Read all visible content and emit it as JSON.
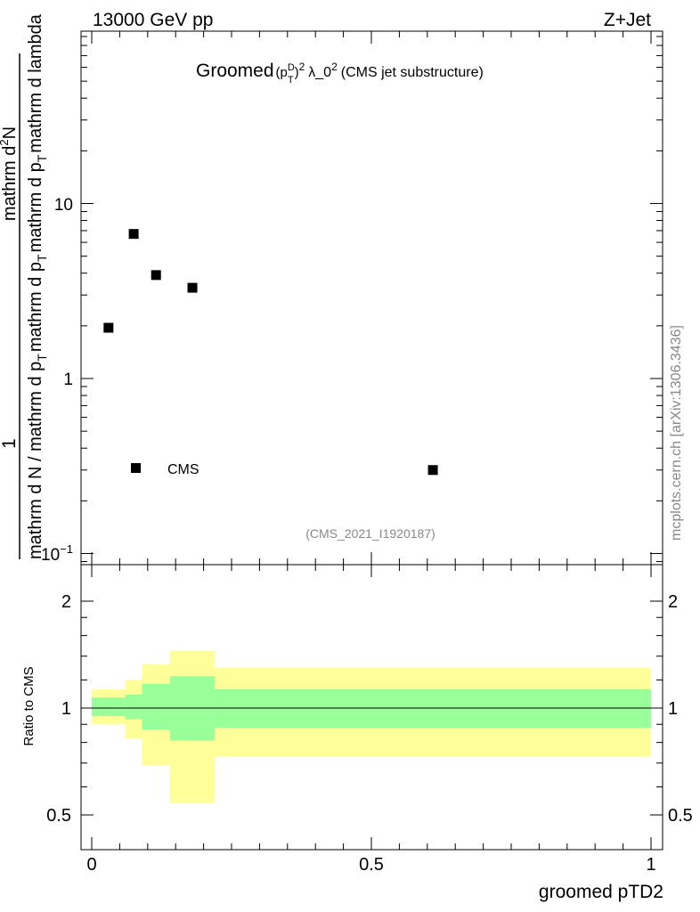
{
  "header": {
    "left": "13000 GeV pp",
    "right": "Z+Jet"
  },
  "plot": {
    "title_main": "Groomed",
    "title_rest": "λ_0",
    "title_tail": "(CMS jet substructure)",
    "title_p": "p",
    "title_D": "D",
    "title_T": "T",
    "title_sup2": "2",
    "title_sup2b": "2",
    "analysis_tag": "(CMS_2021_I1920187)",
    "side_label": "mcplots.cern.ch [arXiv:1306.3436]",
    "ylabel_num": "1",
    "ylabel_den": "mathrm d N / mathrm d p",
    "ylabel_den_sub": "T",
    "ylabel_right_num": "mathrm d",
    "ylabel_right_num_sup": "2",
    "ylabel_right_num_n": "N",
    "ylabel_right_den": "mathrm d p",
    "ylabel_right_den_sub": "T",
    "ylabel_right_den_rest": "mathrm d lambda",
    "ylabel_mid": "mathrm d p",
    "ylabel_mid_sub": "T",
    "ylabel_mid_rest": "mathrm d p",
    "ylabel_mid_sub2": "T"
  },
  "chart_data": [
    {
      "type": "scatter",
      "panel": "main",
      "title": "Groomed (p_T^D)^2 λ_0^2 (CMS jet substructure)",
      "yscale": "log",
      "ylim": [
        0.08,
        100
      ],
      "xlim": [
        -0.02,
        1.02
      ],
      "ytick_labels": [
        "10",
        "1",
        "10^-1"
      ],
      "legend": {
        "label": "CMS",
        "position": "lower-left"
      },
      "series": [
        {
          "name": "CMS",
          "x": [
            0.03,
            0.075,
            0.115,
            0.18,
            0.61
          ],
          "y": [
            1.95,
            6.7,
            3.9,
            3.3,
            0.3
          ]
        }
      ]
    },
    {
      "type": "area",
      "panel": "ratio",
      "ylabel": "Ratio to CMS",
      "xlabel": "groomed pTD2",
      "ylim": [
        0.4,
        2.4
      ],
      "xlim": [
        -0.02,
        1.02
      ],
      "xtick_labels": [
        "0",
        "0.5",
        "1"
      ],
      "ytick_labels": [
        "0.5",
        "1",
        "2"
      ],
      "reference_line": 1,
      "bins": [
        {
          "x0": 0.0,
          "x1": 0.06,
          "stat_lo": 0.95,
          "stat_hi": 1.07,
          "tot_lo": 0.9,
          "tot_hi": 1.13
        },
        {
          "x0": 0.06,
          "x1": 0.09,
          "stat_lo": 0.93,
          "stat_hi": 1.09,
          "tot_lo": 0.82,
          "tot_hi": 1.2
        },
        {
          "x0": 0.09,
          "x1": 0.14,
          "stat_lo": 0.87,
          "stat_hi": 1.17,
          "tot_lo": 0.69,
          "tot_hi": 1.33
        },
        {
          "x0": 0.14,
          "x1": 0.22,
          "stat_lo": 0.81,
          "stat_hi": 1.23,
          "tot_lo": 0.54,
          "tot_hi": 1.45
        },
        {
          "x0": 0.22,
          "x1": 1.0,
          "stat_lo": 0.88,
          "stat_hi": 1.13,
          "tot_lo": 0.73,
          "tot_hi": 1.3
        }
      ],
      "colors": {
        "stat": "#99ff99",
        "total": "#ffff99"
      }
    }
  ]
}
